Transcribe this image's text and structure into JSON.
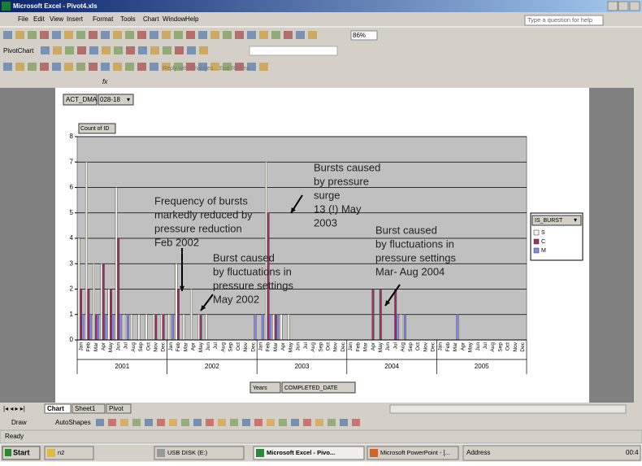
{
  "window": {
    "title": "Microsoft Excel - Pivot4.xls",
    "menu": [
      "File",
      "Edit",
      "View",
      "Insert",
      "Format",
      "Tools",
      "Chart",
      "Window",
      "Help"
    ],
    "help_box": "Type a question for help",
    "zoom": "86%",
    "pivot_toolbar": "PivotChart",
    "review": "Reply with Changes... End Review...",
    "formula_label": "fx"
  },
  "chart_data": {
    "type": "bar",
    "page_field": {
      "name": "ACT_DMA",
      "value": "028-18"
    },
    "data_field": "Count of ID",
    "categories": [
      "Jan",
      "Feb",
      "Mar",
      "Apr",
      "May",
      "Jun",
      "Jul",
      "Aug",
      "Sep",
      "Oct",
      "Nov",
      "Dec",
      "Jan",
      "Feb",
      "Mar",
      "Apr",
      "May",
      "Jun",
      "Jul",
      "Aug",
      "Sep",
      "Oct",
      "Nov",
      "Dec",
      "Jan",
      "Feb",
      "Mar",
      "Apr",
      "May",
      "Jun",
      "Jul",
      "Aug",
      "Sep",
      "Oct",
      "Nov",
      "Dec",
      "Jan",
      "Feb",
      "Mar",
      "Apr",
      "May",
      "Jun",
      "Jul",
      "Aug",
      "Sep",
      "Oct",
      "Nov",
      "Dec",
      "Jan",
      "Feb",
      "Mar",
      "Apr",
      "May",
      "Jun",
      "Jul",
      "Aug",
      "Sep",
      "Oct",
      "Nov",
      "Dec"
    ],
    "years": [
      "2001",
      "2002",
      "2003",
      "2004",
      "2005"
    ],
    "series": [
      {
        "name": "S",
        "color": "#f4f4e4",
        "values": [
          4,
          7,
          3,
          3,
          2,
          6,
          1,
          1,
          1,
          1,
          1,
          1,
          1,
          3,
          1,
          2,
          1,
          1,
          0,
          0,
          0,
          0,
          0,
          0,
          0,
          7,
          1,
          1,
          1,
          0,
          0,
          0,
          0,
          0,
          0,
          0,
          0,
          0,
          0,
          0,
          0,
          0,
          0,
          1,
          0,
          0,
          0,
          0,
          0,
          0,
          0,
          0,
          0,
          0,
          0,
          0,
          0,
          0,
          0,
          0
        ]
      },
      {
        "name": "C",
        "color": "#993366",
        "values": [
          2,
          2,
          1,
          3,
          2,
          4,
          0,
          0,
          0,
          0,
          1,
          1,
          0,
          2,
          0,
          0,
          1,
          0,
          0,
          0,
          0,
          0,
          0,
          0,
          0,
          5,
          1,
          0,
          0,
          0,
          0,
          0,
          0,
          0,
          0,
          0,
          0,
          0,
          0,
          2,
          2,
          0,
          2,
          0,
          0,
          0,
          0,
          0,
          0,
          0,
          0,
          0,
          0,
          0,
          0,
          0,
          0,
          0,
          0,
          0
        ]
      },
      {
        "name": "M",
        "color": "#8888ee",
        "values": [
          1,
          1,
          1,
          1,
          1,
          1,
          1,
          0,
          0,
          0,
          0,
          0,
          1,
          0,
          0,
          0,
          0,
          0,
          0,
          0,
          0,
          0,
          0,
          1,
          1,
          1,
          1,
          0,
          0,
          0,
          0,
          0,
          0,
          0,
          0,
          0,
          0,
          0,
          0,
          0,
          0,
          0,
          1,
          1,
          0,
          0,
          0,
          0,
          0,
          0,
          1,
          0,
          0,
          0,
          0,
          0,
          0,
          0,
          0,
          0
        ]
      }
    ],
    "ylim": [
      0,
      8
    ],
    "yticks": [
      0,
      1,
      2,
      3,
      4,
      5,
      6,
      7,
      8
    ],
    "grid": true,
    "legend": {
      "title": "IS_BURST",
      "position": "right"
    },
    "annotations": [
      [
        "Bursts caused",
        "by pressure",
        "surge",
        "13  (!) May",
        "2003"
      ],
      [
        "Frequency of bursts",
        "markedly reduced by",
        "pressure reduction",
        "Feb 2002"
      ],
      [
        "Burst caused",
        "by fluctuations in",
        "pressure settings",
        "May 2002"
      ],
      [
        "Burst caused",
        "by fluctuations in",
        "pressure settings",
        "Mar- Aug 2004"
      ]
    ],
    "row_fields": [
      "Years",
      "COMPLETED_DATE"
    ]
  },
  "sheet_tabs": [
    "Chart",
    "Sheet1",
    "Pivot"
  ],
  "drawing_toolbar": [
    "Draw",
    "AutoShapes"
  ],
  "status": "Ready",
  "taskbar": {
    "start": "Start",
    "items": [
      "n2",
      "USB DISK (E:)",
      "Microsoft Excel - Pivo...",
      "Microsoft PowerPoint - [..."
    ],
    "address": "Address",
    "clock": "00:4"
  }
}
